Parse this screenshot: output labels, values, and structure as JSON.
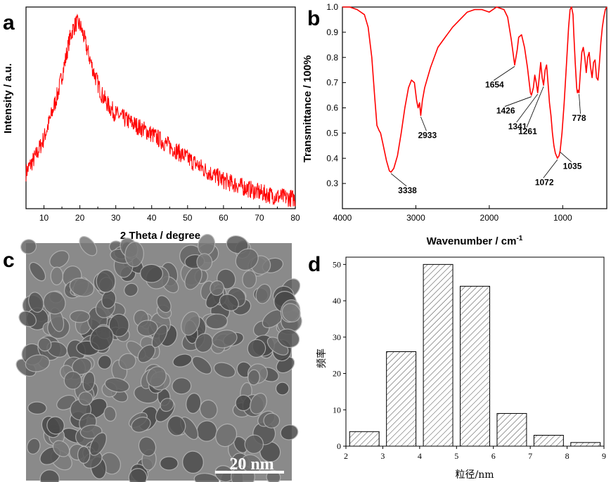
{
  "chart_data": [
    {
      "panel": "a",
      "type": "line",
      "xlabel": "2 Theta / degree",
      "ylabel": "Intensity / a.u.",
      "xlim": [
        5,
        80
      ],
      "xticks": [
        10,
        20,
        30,
        40,
        50,
        60,
        70,
        80
      ],
      "y_ticks_shown": false,
      "color": "#ff0000",
      "series": [
        {
          "x": [
            5,
            8,
            10,
            12,
            14,
            16,
            17,
            18,
            19,
            20,
            21,
            22,
            24,
            26,
            28,
            30,
            35,
            40,
            45,
            50,
            55,
            60,
            65,
            70,
            75,
            80
          ],
          "values": [
            0.18,
            0.27,
            0.35,
            0.46,
            0.58,
            0.74,
            0.83,
            0.89,
            0.92,
            0.91,
            0.86,
            0.79,
            0.67,
            0.57,
            0.51,
            0.47,
            0.42,
            0.37,
            0.31,
            0.25,
            0.19,
            0.14,
            0.11,
            0.08,
            0.06,
            0.05
          ]
        }
      ]
    },
    {
      "panel": "b",
      "type": "line",
      "xlabel": "Wavenumber / cm",
      "xlabel_sup": "-1",
      "ylabel": "Transmittance / 100%",
      "xlim": [
        4000,
        400
      ],
      "ylim": [
        0.2,
        1.0
      ],
      "xticks": [
        4000,
        3000,
        2000,
        1000
      ],
      "yticks": [
        0.3,
        0.4,
        0.5,
        0.6,
        0.7,
        0.8,
        0.9,
        1.0
      ],
      "color": "#ff0000",
      "series": [
        {
          "x": [
            4000,
            3900,
            3800,
            3700,
            3650,
            3600,
            3560,
            3530,
            3500,
            3480,
            3450,
            3400,
            3360,
            3338,
            3300,
            3250,
            3200,
            3150,
            3100,
            3060,
            3020,
            2990,
            2970,
            2950,
            2933,
            2910,
            2880,
            2850,
            2800,
            2700,
            2600,
            2500,
            2400,
            2300,
            2200,
            2100,
            2000,
            1900,
            1800,
            1750,
            1700,
            1654,
            1620,
            1600,
            1560,
            1520,
            1480,
            1440,
            1426,
            1400,
            1380,
            1360,
            1341,
            1320,
            1300,
            1280,
            1261,
            1240,
            1220,
            1200,
            1180,
            1160,
            1140,
            1120,
            1100,
            1072,
            1050,
            1035,
            1010,
            980,
            950,
            920,
            900,
            880,
            860,
            850,
            830,
            810,
            800,
            790,
            778,
            760,
            740,
            720,
            700,
            680,
            660,
            640,
            620,
            600,
            580,
            560,
            540,
            520,
            500,
            480,
            460,
            440,
            420,
            400
          ],
          "values": [
            1.0,
            1.0,
            0.99,
            0.97,
            0.92,
            0.8,
            0.64,
            0.53,
            0.51,
            0.5,
            0.46,
            0.39,
            0.35,
            0.345,
            0.36,
            0.41,
            0.5,
            0.6,
            0.68,
            0.71,
            0.7,
            0.63,
            0.6,
            0.62,
            0.57,
            0.63,
            0.68,
            0.71,
            0.76,
            0.84,
            0.88,
            0.92,
            0.95,
            0.98,
            0.99,
            0.99,
            0.98,
            1.0,
            0.99,
            0.96,
            0.87,
            0.77,
            0.83,
            0.88,
            0.89,
            0.84,
            0.76,
            0.66,
            0.65,
            0.68,
            0.73,
            0.7,
            0.66,
            0.72,
            0.78,
            0.72,
            0.69,
            0.75,
            0.77,
            0.7,
            0.62,
            0.57,
            0.5,
            0.45,
            0.42,
            0.4,
            0.41,
            0.43,
            0.5,
            0.62,
            0.77,
            0.92,
            0.99,
            1.0,
            0.97,
            0.9,
            0.78,
            0.68,
            0.66,
            0.67,
            0.66,
            0.74,
            0.82,
            0.84,
            0.8,
            0.74,
            0.8,
            0.82,
            0.76,
            0.72,
            0.78,
            0.79,
            0.72,
            0.71,
            0.78,
            0.86,
            0.92,
            0.96,
            0.99,
            1.0
          ]
        }
      ],
      "annotations": [
        {
          "text": "3338",
          "x": 3338,
          "y": 0.345
        },
        {
          "text": "2933",
          "x": 2933,
          "y": 0.57
        },
        {
          "text": "1654",
          "x": 1654,
          "y": 0.77
        },
        {
          "text": "1426",
          "x": 1426,
          "y": 0.65
        },
        {
          "text": "1341",
          "x": 1341,
          "y": 0.66
        },
        {
          "text": "1261",
          "x": 1261,
          "y": 0.69
        },
        {
          "text": "1072",
          "x": 1072,
          "y": 0.4
        },
        {
          "text": "1035",
          "x": 1035,
          "y": 0.43
        },
        {
          "text": "778",
          "x": 778,
          "y": 0.66
        }
      ]
    },
    {
      "panel": "c",
      "type": "image",
      "content": "TEM micrograph of nanoparticles",
      "scalebar_label": "20 nm"
    },
    {
      "panel": "d",
      "type": "bar",
      "xlabel": "粒径/nm",
      "ylabel": "频率",
      "xlim": [
        2,
        9
      ],
      "ylim": [
        0,
        52
      ],
      "xticks": [
        2,
        3,
        4,
        5,
        6,
        7,
        8,
        9
      ],
      "yticks": [
        0,
        10,
        20,
        30,
        40,
        50
      ],
      "fill": "hatched",
      "bins": [
        [
          2.1,
          2.9
        ],
        [
          3.1,
          3.9
        ],
        [
          4.1,
          4.9
        ],
        [
          5.1,
          5.9
        ],
        [
          6.1,
          6.9
        ],
        [
          7.1,
          7.9
        ],
        [
          8.1,
          8.9
        ]
      ],
      "values": [
        4,
        26,
        50,
        44,
        9,
        3,
        1
      ]
    }
  ]
}
